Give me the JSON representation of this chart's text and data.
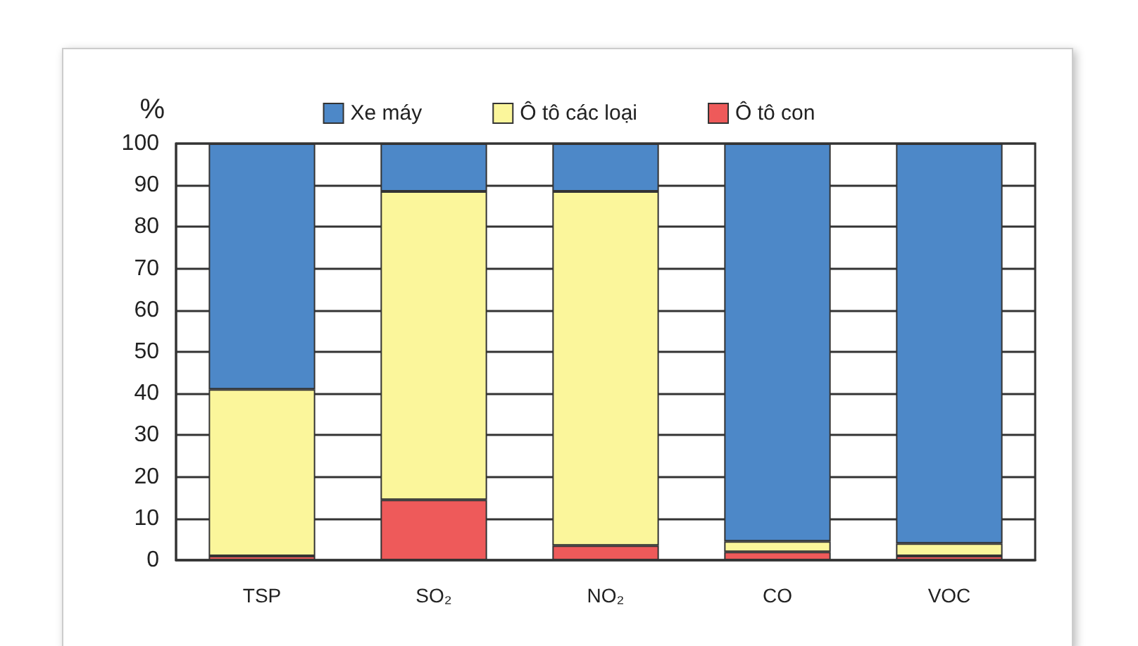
{
  "chart_data": {
    "type": "bar",
    "stacked": true,
    "ylabel": "%",
    "categories": [
      "TSP",
      "SO₂",
      "NO₂",
      "CO",
      "VOC"
    ],
    "series": [
      {
        "name": "Ô tô con",
        "color": "#ee5a5a",
        "values": [
          1,
          14.5,
          3.5,
          2,
          1
        ]
      },
      {
        "name": "Ô tô các loại",
        "color": "#fbf69b",
        "values": [
          40,
          74,
          85,
          2.5,
          3
        ]
      },
      {
        "name": "Xe máy",
        "color": "#4d88c8",
        "values": [
          59,
          11.5,
          11.5,
          95.5,
          96
        ]
      }
    ],
    "ylim": [
      0,
      100
    ],
    "yticks": [
      0,
      10,
      20,
      30,
      40,
      50,
      60,
      70,
      80,
      90,
      100
    ],
    "grid": "y",
    "legend": "top"
  }
}
